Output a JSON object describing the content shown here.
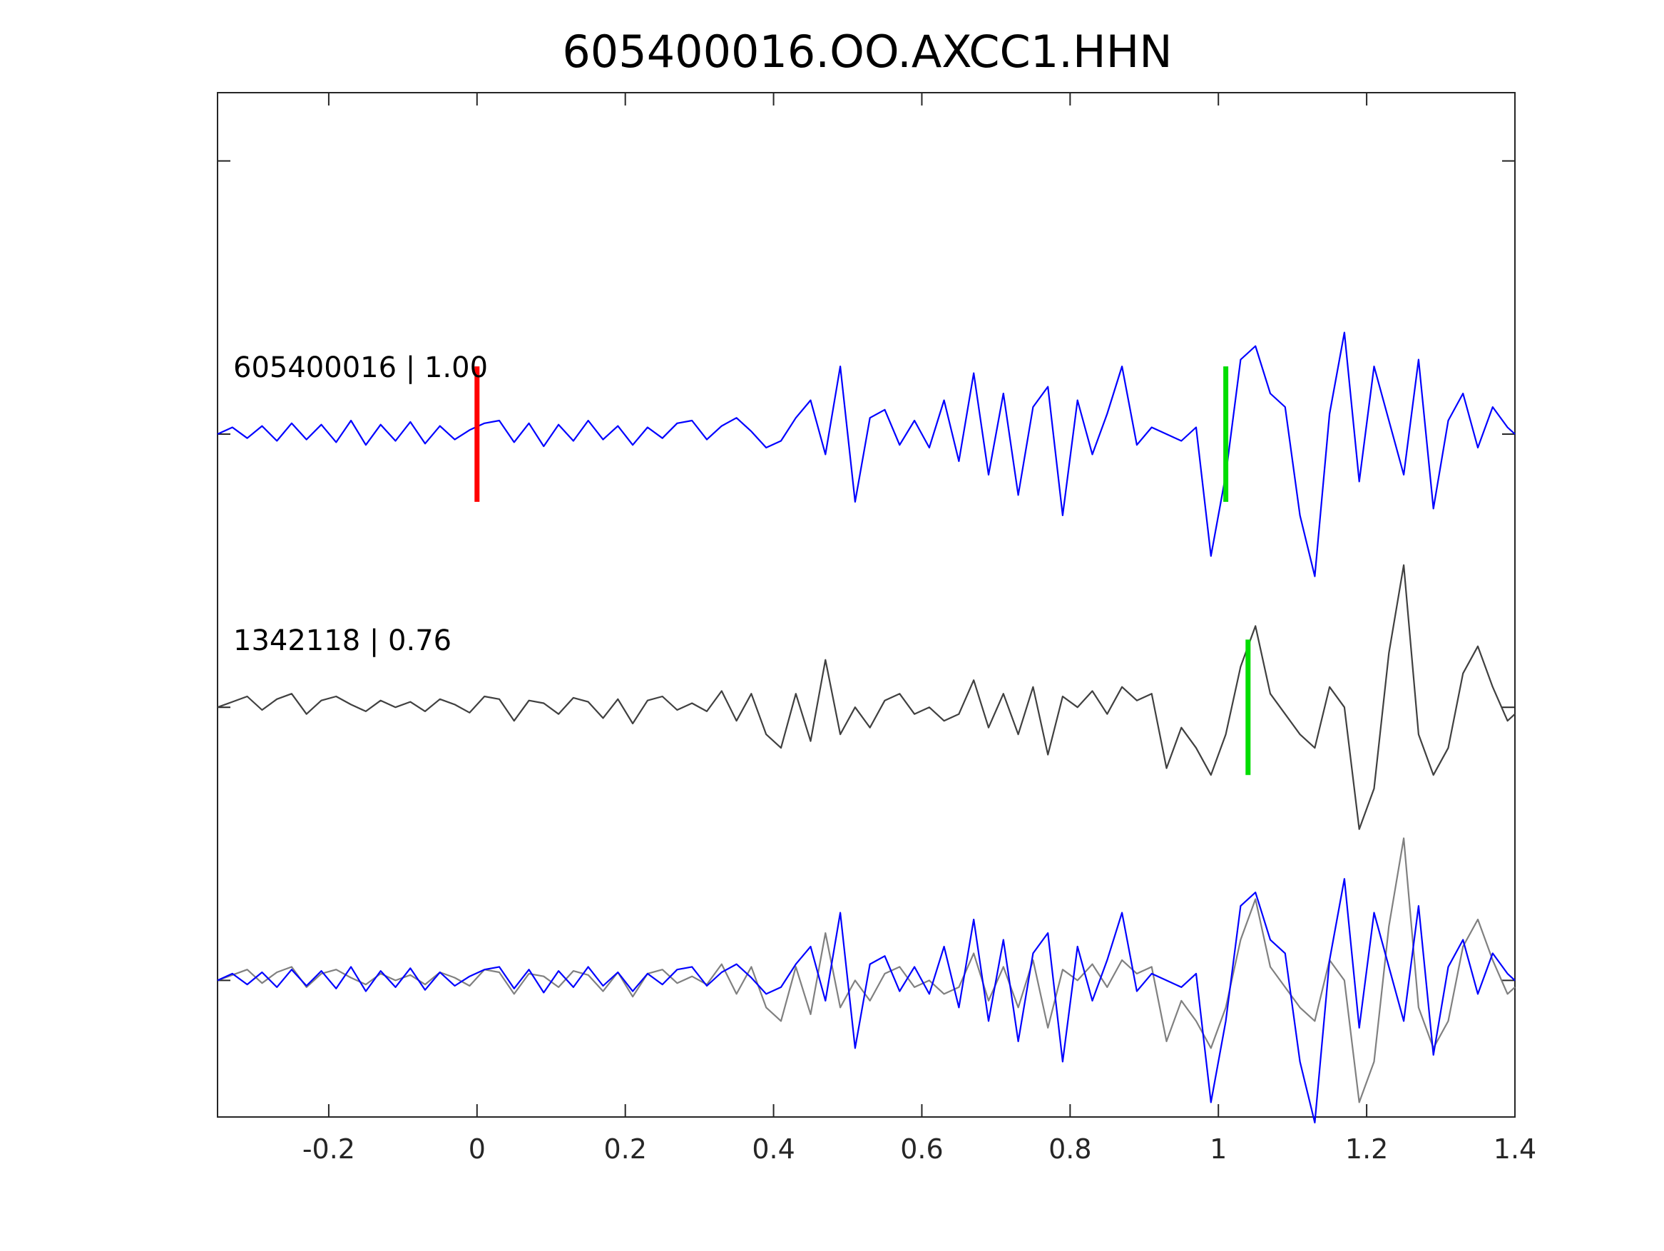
{
  "chart_data": {
    "type": "line",
    "title": "605400016.OO.AXCC1.HHN",
    "xlabel": "",
    "ylabel": "",
    "xlim": [
      -0.35,
      1.4
    ],
    "x_ticks": [
      -0.2,
      0,
      0.2,
      0.4,
      0.6,
      0.8,
      1,
      1.2,
      1.4
    ],
    "x_tick_labels": [
      "-0.2",
      "0",
      "0.2",
      "0.4",
      "0.6",
      "0.8",
      "1",
      "1.2",
      "1.4"
    ],
    "ylim": [
      -1.5,
      2.25
    ],
    "y_ticks": [
      -1,
      0,
      1,
      2
    ],
    "y_tick_labels_shown": false,
    "grid": false,
    "legend": "none",
    "traces": [
      {
        "name": "605400016 | 1.00",
        "offset": 1,
        "color": "#0000ff"
      },
      {
        "name": "1342118 | 0.76",
        "offset": 0,
        "color": "#404040"
      },
      {
        "name": "",
        "offset": -1,
        "color": "#0000ff",
        "overlay_color": "#808080"
      }
    ],
    "picks": [
      {
        "trace": 0,
        "x": 0.0,
        "color": "#ff0000"
      },
      {
        "trace": 0,
        "x": 1.01,
        "color": "#00dd00"
      },
      {
        "trace": 1,
        "x": 1.04,
        "color": "#00dd00"
      }
    ],
    "series": [
      {
        "name": "605400016",
        "x": [
          -0.35,
          -0.33,
          -0.31,
          -0.29,
          -0.27,
          -0.25,
          -0.23,
          -0.21,
          -0.19,
          -0.17,
          -0.15,
          -0.13,
          -0.11,
          -0.09,
          -0.07,
          -0.05,
          -0.03,
          -0.01,
          0.01,
          0.03,
          0.05,
          0.07,
          0.09,
          0.11,
          0.13,
          0.15,
          0.17,
          0.19,
          0.21,
          0.23,
          0.25,
          0.27,
          0.29,
          0.31,
          0.33,
          0.35,
          0.37,
          0.39,
          0.41,
          0.43,
          0.45,
          0.47,
          0.49,
          0.51,
          0.53,
          0.55,
          0.57,
          0.59,
          0.61,
          0.63,
          0.65,
          0.67,
          0.69,
          0.71,
          0.73,
          0.75,
          0.77,
          0.79,
          0.81,
          0.83,
          0.85,
          0.87,
          0.89,
          0.91,
          0.93,
          0.95,
          0.97,
          0.99,
          1.01,
          1.03,
          1.05,
          1.07,
          1.09,
          1.11,
          1.13,
          1.15,
          1.17,
          1.19,
          1.21,
          1.23,
          1.25,
          1.27,
          1.29,
          1.31,
          1.33,
          1.35,
          1.37,
          1.39,
          1.4
        ],
        "y": [
          0,
          0.05,
          -0.03,
          0.06,
          -0.05,
          0.08,
          -0.04,
          0.07,
          -0.06,
          0.1,
          -0.08,
          0.07,
          -0.05,
          0.09,
          -0.07,
          0.06,
          -0.04,
          0.03,
          0.08,
          0.1,
          -0.06,
          0.08,
          -0.09,
          0.07,
          -0.05,
          0.1,
          -0.04,
          0.06,
          -0.08,
          0.05,
          -0.03,
          0.08,
          0.1,
          -0.04,
          0.06,
          0.12,
          0.02,
          -0.1,
          -0.05,
          0.12,
          0.25,
          -0.15,
          0.5,
          -0.5,
          0.12,
          0.18,
          -0.08,
          0.1,
          -0.1,
          0.25,
          -0.2,
          0.45,
          -0.3,
          0.3,
          -0.45,
          0.2,
          0.35,
          -0.6,
          0.25,
          -0.15,
          0.15,
          0.5,
          -0.08,
          0.05,
          0.0,
          -0.05,
          0.05,
          -0.9,
          -0.3,
          0.55,
          0.65,
          0.3,
          0.2,
          -0.6,
          -1.05,
          0.15,
          0.75,
          -0.35,
          0.5,
          0.1,
          -0.3,
          0.55,
          -0.55,
          0.1,
          0.3,
          -0.1,
          0.2,
          0.05,
          0.0
        ]
      },
      {
        "name": "1342118",
        "x": [
          -0.35,
          -0.33,
          -0.31,
          -0.29,
          -0.27,
          -0.25,
          -0.23,
          -0.21,
          -0.19,
          -0.17,
          -0.15,
          -0.13,
          -0.11,
          -0.09,
          -0.07,
          -0.05,
          -0.03,
          -0.01,
          0.01,
          0.03,
          0.05,
          0.07,
          0.09,
          0.11,
          0.13,
          0.15,
          0.17,
          0.19,
          0.21,
          0.23,
          0.25,
          0.27,
          0.29,
          0.31,
          0.33,
          0.35,
          0.37,
          0.39,
          0.41,
          0.43,
          0.45,
          0.47,
          0.49,
          0.51,
          0.53,
          0.55,
          0.57,
          0.59,
          0.61,
          0.63,
          0.65,
          0.67,
          0.69,
          0.71,
          0.73,
          0.75,
          0.77,
          0.79,
          0.81,
          0.83,
          0.85,
          0.87,
          0.89,
          0.91,
          0.93,
          0.95,
          0.97,
          0.99,
          1.01,
          1.03,
          1.05,
          1.07,
          1.09,
          1.11,
          1.13,
          1.15,
          1.17,
          1.19,
          1.21,
          1.23,
          1.25,
          1.27,
          1.29,
          1.31,
          1.33,
          1.35,
          1.37,
          1.39,
          1.4
        ],
        "y": [
          0,
          0.04,
          0.08,
          -0.02,
          0.06,
          0.1,
          -0.05,
          0.05,
          0.08,
          0.02,
          -0.03,
          0.05,
          0.0,
          0.04,
          -0.03,
          0.06,
          0.02,
          -0.04,
          0.08,
          0.06,
          -0.1,
          0.05,
          0.03,
          -0.05,
          0.07,
          0.04,
          -0.08,
          0.06,
          -0.12,
          0.05,
          0.08,
          -0.02,
          0.03,
          -0.03,
          0.12,
          -0.1,
          0.1,
          -0.2,
          -0.3,
          0.1,
          -0.25,
          0.35,
          -0.2,
          0.0,
          -0.15,
          0.05,
          0.1,
          -0.05,
          0.0,
          -0.1,
          -0.05,
          0.2,
          -0.15,
          0.1,
          -0.2,
          0.15,
          -0.35,
          0.08,
          0.0,
          0.12,
          -0.05,
          0.15,
          0.05,
          0.1,
          -0.45,
          -0.15,
          -0.3,
          -0.5,
          -0.2,
          0.3,
          0.6,
          0.1,
          -0.05,
          -0.2,
          -0.3,
          0.15,
          0.0,
          -0.9,
          -0.6,
          0.4,
          1.05,
          -0.2,
          -0.5,
          -0.3,
          0.25,
          0.45,
          0.15,
          -0.1,
          -0.05
        ]
      }
    ]
  }
}
